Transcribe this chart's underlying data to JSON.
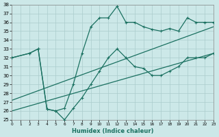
{
  "xlabel": "Humidex (Indice chaleur)",
  "background_color": "#cce8e8",
  "grid_color": "#aacccc",
  "line_color": "#1a7060",
  "xlim": [
    0,
    23
  ],
  "ylim": [
    25,
    38
  ],
  "xticks": [
    0,
    1,
    2,
    3,
    4,
    5,
    6,
    7,
    8,
    9,
    10,
    11,
    12,
    13,
    14,
    15,
    16,
    17,
    18,
    19,
    20,
    21,
    22,
    23
  ],
  "yticks": [
    25,
    26,
    27,
    28,
    29,
    30,
    31,
    32,
    33,
    34,
    35,
    36,
    37,
    38
  ],
  "line1_x": [
    0,
    2,
    3,
    4,
    5,
    6,
    7,
    8,
    9,
    10,
    11,
    12,
    13,
    14,
    15,
    16,
    17,
    18,
    19,
    20,
    21,
    22,
    23
  ],
  "line1_y": [
    32,
    32.5,
    33,
    26.2,
    26,
    26.3,
    29,
    32.5,
    35.5,
    36.5,
    36.5,
    37.8,
    36.0,
    36.0,
    35.5,
    35.2,
    35.0,
    35.3,
    35.0,
    36.5,
    36.0,
    36.0,
    36.0
  ],
  "line2_x": [
    0,
    2,
    3,
    4,
    5,
    6,
    7,
    8,
    9,
    10,
    11,
    12,
    13,
    14,
    15,
    16,
    17,
    18,
    19,
    20,
    21,
    22,
    23
  ],
  "line2_y": [
    32,
    32.5,
    33,
    26.2,
    26,
    25.0,
    26.3,
    27.5,
    29.0,
    30.5,
    32.0,
    33.0,
    32.0,
    31.0,
    30.8,
    30.0,
    30.0,
    30.5,
    31.0,
    32.0,
    32.0,
    32.0,
    32.5
  ],
  "line3_x": [
    0,
    23
  ],
  "line3_y": [
    26.0,
    32.5
  ],
  "line4_x": [
    0,
    23
  ],
  "line4_y": [
    27.2,
    35.5
  ]
}
